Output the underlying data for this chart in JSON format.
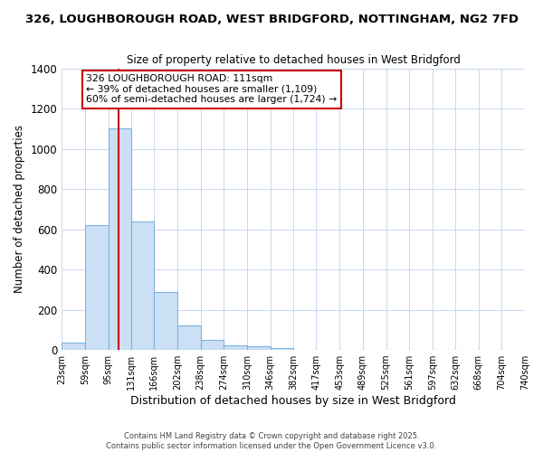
{
  "title_line1": "326, LOUGHBOROUGH ROAD, WEST BRIDGFORD, NOTTINGHAM, NG2 7FD",
  "title_line2": "Size of property relative to detached houses in West Bridgford",
  "xlabel": "Distribution of detached houses by size in West Bridgford",
  "ylabel": "Number of detached properties",
  "bin_edges": [
    23,
    59,
    95,
    131,
    166,
    202,
    238,
    274,
    310,
    346,
    382,
    417,
    453,
    489,
    525,
    561,
    597,
    632,
    668,
    704,
    740
  ],
  "bar_heights": [
    35,
    620,
    1100,
    640,
    290,
    120,
    50,
    25,
    20,
    10,
    0,
    0,
    0,
    0,
    0,
    0,
    0,
    0,
    0,
    0
  ],
  "bar_color": "#cce0f5",
  "bar_edge_color": "#7ab4e0",
  "vline_x": 111,
  "vline_color": "#cc0000",
  "annotation_text": "326 LOUGHBOROUGH ROAD: 111sqm\n← 39% of detached houses are smaller (1,109)\n60% of semi-detached houses are larger (1,724) →",
  "annotation_box_color": "#ffffff",
  "annotation_box_edge_color": "#cc0000",
  "ylim": [
    0,
    1400
  ],
  "yticks": [
    0,
    200,
    400,
    600,
    800,
    1000,
    1200,
    1400
  ],
  "grid_color": "#c8d8ee",
  "background_color": "#ffffff",
  "plot_bg_color": "#ffffff",
  "footer_line1": "Contains HM Land Registry data © Crown copyright and database right 2025.",
  "footer_line2": "Contains public sector information licensed under the Open Government Licence v3.0.",
  "title_fontsize": 9.5,
  "subtitle_fontsize": 8.5,
  "tick_labels": [
    "23sqm",
    "59sqm",
    "95sqm",
    "131sqm",
    "166sqm",
    "202sqm",
    "238sqm",
    "274sqm",
    "310sqm",
    "346sqm",
    "382sqm",
    "417sqm",
    "453sqm",
    "489sqm",
    "525sqm",
    "561sqm",
    "597sqm",
    "632sqm",
    "668sqm",
    "704sqm",
    "740sqm"
  ]
}
